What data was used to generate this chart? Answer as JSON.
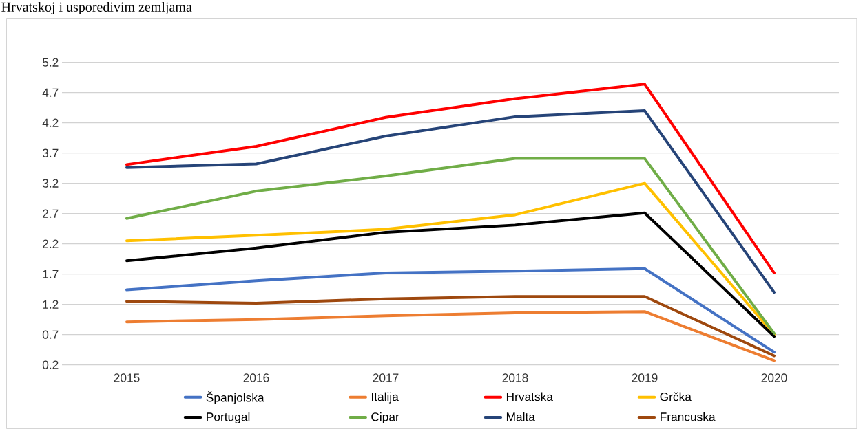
{
  "chart_data": {
    "type": "line",
    "title": "Hrvatskoj i usporedivim zemljama",
    "categories": [
      "2015",
      "2016",
      "2017",
      "2018",
      "2019",
      "2020"
    ],
    "series": [
      {
        "name": "Španjolska",
        "color": "#4472c4",
        "values": [
          1.44,
          1.59,
          1.72,
          1.75,
          1.79,
          0.41
        ]
      },
      {
        "name": "Italija",
        "color": "#ed7d31",
        "values": [
          0.91,
          0.95,
          1.01,
          1.06,
          1.08,
          0.27
        ]
      },
      {
        "name": "Hrvatska",
        "color": "#ff0000",
        "values": [
          3.51,
          3.81,
          4.29,
          4.6,
          4.84,
          1.72
        ]
      },
      {
        "name": "Grčka",
        "color": "#ffc000",
        "values": [
          2.25,
          2.34,
          2.44,
          2.68,
          3.2,
          0.7
        ]
      },
      {
        "name": "Portugal",
        "color": "#000000",
        "values": [
          1.92,
          2.13,
          2.39,
          2.51,
          2.71,
          0.67
        ]
      },
      {
        "name": "Cipar",
        "color": "#70ad47",
        "values": [
          2.62,
          3.07,
          3.32,
          3.61,
          3.61,
          0.72
        ]
      },
      {
        "name": "Malta",
        "color": "#264478",
        "values": [
          3.46,
          3.52,
          3.98,
          4.3,
          4.4,
          1.4
        ]
      },
      {
        "name": "Francuska",
        "color": "#9e480e",
        "values": [
          1.25,
          1.22,
          1.29,
          1.33,
          1.33,
          0.35
        ]
      }
    ],
    "ylim": [
      0.2,
      5.2
    ],
    "yticks": [
      0.2,
      0.7,
      1.2,
      1.7,
      2.2,
      2.7,
      3.2,
      3.7,
      4.2,
      4.7,
      5.2
    ],
    "grid": "y",
    "legend": "bottom",
    "marker": "none",
    "line_style": "solid"
  }
}
